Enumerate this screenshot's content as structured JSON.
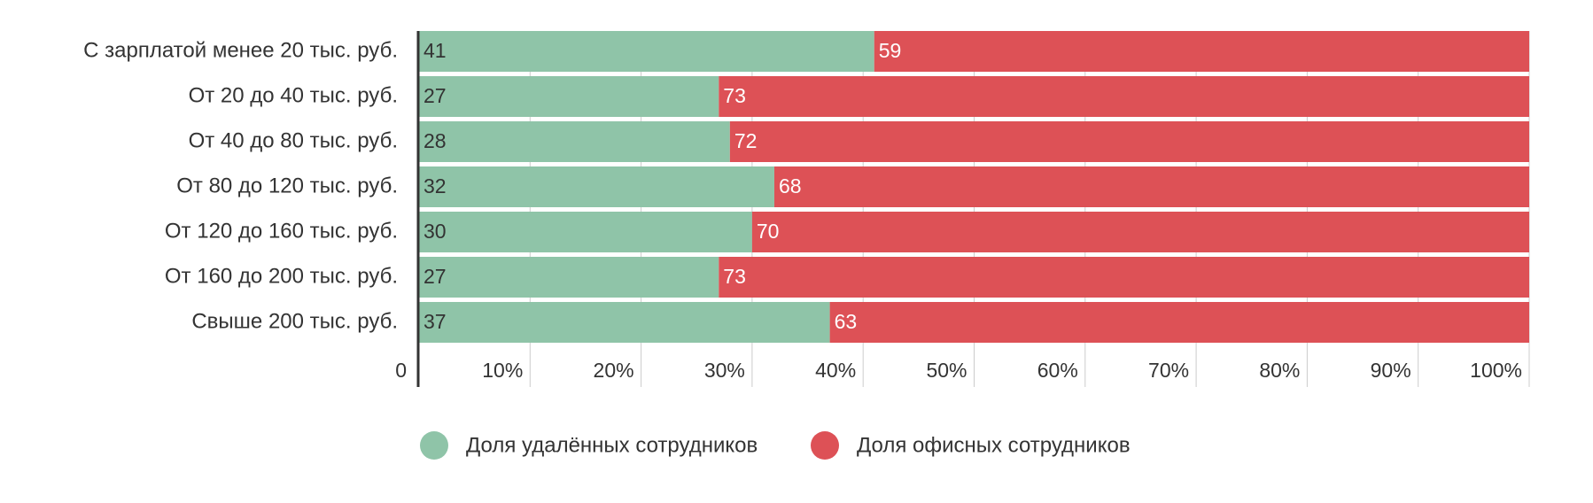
{
  "chart_data": {
    "type": "bar",
    "orientation": "horizontal",
    "stacked": true,
    "title": "",
    "categories": [
      "С зарплатой менее 20 тыс. руб.",
      "От 20 до 40 тыс. руб.",
      "От 40 до 80 тыс. руб.",
      "От 80 до 120 тыс. руб.",
      "От 120 до 160 тыс. руб.",
      "От 160 до 200 тыс. руб.",
      "Свыше 200 тыс. руб."
    ],
    "series": [
      {
        "name": "Доля удалённых сотрудников",
        "color": "#8fc4a8",
        "label_color": "#333333",
        "values": [
          41,
          27,
          28,
          32,
          30,
          27,
          37
        ]
      },
      {
        "name": "Доля офисных сотрудников",
        "color": "#dd5156",
        "label_color": "#ffffff",
        "values": [
          59,
          73,
          72,
          68,
          70,
          73,
          63
        ]
      }
    ],
    "xlim": [
      0,
      100
    ],
    "x_ticks": [
      0,
      10,
      20,
      30,
      40,
      50,
      60,
      70,
      80,
      90,
      100
    ],
    "x_tick_labels": [
      "0",
      "10%",
      "20%",
      "30%",
      "40%",
      "50%",
      "60%",
      "70%",
      "80%",
      "90%",
      "100%"
    ],
    "grid": true,
    "legend_position": "bottom"
  }
}
